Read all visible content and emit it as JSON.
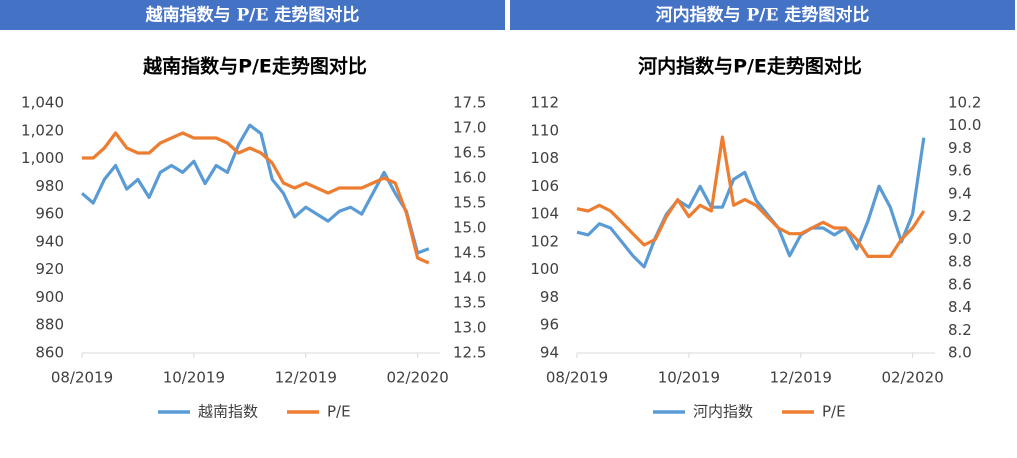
{
  "chart_data": [
    {
      "type": "line",
      "heading": "越南指数与 P/E 走势图对比",
      "title": "越南指数与P/E走势图对比",
      "x": [
        0,
        0.2,
        0.4,
        0.6,
        0.8,
        1,
        1.2,
        1.4,
        1.6,
        1.8,
        2,
        2.2,
        2.4,
        2.6,
        2.8,
        3,
        3.2,
        3.4,
        3.6,
        3.8,
        4,
        4.2,
        4.4,
        4.6,
        4.8,
        5,
        5.2,
        5.4,
        5.6,
        5.8,
        6,
        6.2
      ],
      "xlim": [
        0,
        6.4
      ],
      "xticks": [
        {
          "value": 0,
          "label": "08/2019"
        },
        {
          "value": 2,
          "label": "10/2019"
        },
        {
          "value": 4,
          "label": "12/2019"
        },
        {
          "value": 6,
          "label": "02/2020"
        }
      ],
      "ylim": [
        860,
        1040
      ],
      "yticks": [
        860,
        880,
        900,
        920,
        940,
        960,
        980,
        {
          "value": 1000,
          "label": "1,000"
        },
        {
          "value": 1020,
          "label": "1,020"
        },
        {
          "value": 1040,
          "label": "1,040"
        }
      ],
      "y2lim": [
        12.5,
        17.5
      ],
      "y2ticks": [
        12.5,
        {
          "value": 13,
          "label": "13.0"
        },
        13.5,
        {
          "value": 14,
          "label": "14.0"
        },
        14.5,
        {
          "value": 15,
          "label": "15.0"
        },
        15.5,
        {
          "value": 16,
          "label": "16.0"
        },
        16.5,
        {
          "value": 17,
          "label": "17.0"
        },
        17.5
      ],
      "grid": false,
      "legend": "bottom",
      "series": [
        {
          "name": "越南指数",
          "color": "#5b9bd5",
          "values": [
            975,
            968,
            985,
            995,
            978,
            985,
            972,
            990,
            995,
            990,
            998,
            982,
            995,
            990,
            1010,
            1024,
            1018,
            985,
            975,
            958,
            965,
            960,
            955,
            962,
            965,
            960,
            975,
            990,
            975,
            962,
            932,
            935
          ]
        },
        {
          "name": "P/E",
          "color": "#ed7d31",
          "axis": "y2",
          "values": [
            16.4,
            16.4,
            16.6,
            16.9,
            16.6,
            16.5,
            16.5,
            16.7,
            16.8,
            16.9,
            16.8,
            16.8,
            16.8,
            16.7,
            16.5,
            16.6,
            16.5,
            16.3,
            15.9,
            15.8,
            15.9,
            15.8,
            15.7,
            15.8,
            15.8,
            15.8,
            15.9,
            16.0,
            15.9,
            15.3,
            14.4,
            14.3
          ]
        }
      ]
    },
    {
      "type": "line",
      "heading": "河内指数与 P/E 走势图对比",
      "title": "河内指数与P/E走势图对比",
      "x": [
        0,
        0.2,
        0.4,
        0.6,
        0.8,
        1,
        1.2,
        1.4,
        1.6,
        1.8,
        2,
        2.2,
        2.4,
        2.6,
        2.8,
        3,
        3.2,
        3.4,
        3.6,
        3.8,
        4,
        4.2,
        4.4,
        4.6,
        4.8,
        5,
        5.2,
        5.4,
        5.6,
        5.8,
        6,
        6.2
      ],
      "xlim": [
        0,
        6.4
      ],
      "xticks": [
        {
          "value": 0,
          "label": "08/2019"
        },
        {
          "value": 2,
          "label": "10/2019"
        },
        {
          "value": 4,
          "label": "12/2019"
        },
        {
          "value": 6,
          "label": "02/2020"
        }
      ],
      "ylim": [
        94,
        112
      ],
      "yticks": [
        94,
        96,
        98,
        100,
        102,
        104,
        106,
        108,
        110,
        112
      ],
      "y2lim": [
        8,
        10.2
      ],
      "y2ticks": [
        {
          "value": 8,
          "label": "8.0"
        },
        8.2,
        8.4,
        8.6,
        8.8,
        {
          "value": 9,
          "label": "9.0"
        },
        9.2,
        9.4,
        9.6,
        9.8,
        {
          "value": 10,
          "label": "10.0"
        },
        10.2
      ],
      "grid": false,
      "legend": "bottom",
      "series": [
        {
          "name": "河内指数",
          "color": "#5b9bd5",
          "values": [
            102.7,
            102.5,
            103.3,
            103,
            102,
            101,
            100.2,
            102.3,
            104,
            105,
            104.5,
            106,
            104.5,
            104.5,
            106.5,
            107,
            105,
            104,
            103,
            101,
            102.5,
            103,
            103,
            102.5,
            103,
            101.5,
            103.5,
            106,
            104.5,
            102,
            104,
            109.5
          ]
        },
        {
          "name": "P/E",
          "color": "#ed7d31",
          "axis": "y2",
          "values": [
            9.27,
            9.25,
            9.3,
            9.25,
            9.15,
            9.05,
            8.95,
            9.0,
            9.2,
            9.35,
            9.2,
            9.3,
            9.25,
            9.9,
            9.3,
            9.35,
            9.3,
            9.2,
            9.1,
            9.05,
            9.05,
            9.1,
            9.15,
            9.1,
            9.1,
            9.0,
            8.85,
            8.85,
            8.85,
            9.0,
            9.1,
            9.25
          ]
        }
      ]
    }
  ]
}
